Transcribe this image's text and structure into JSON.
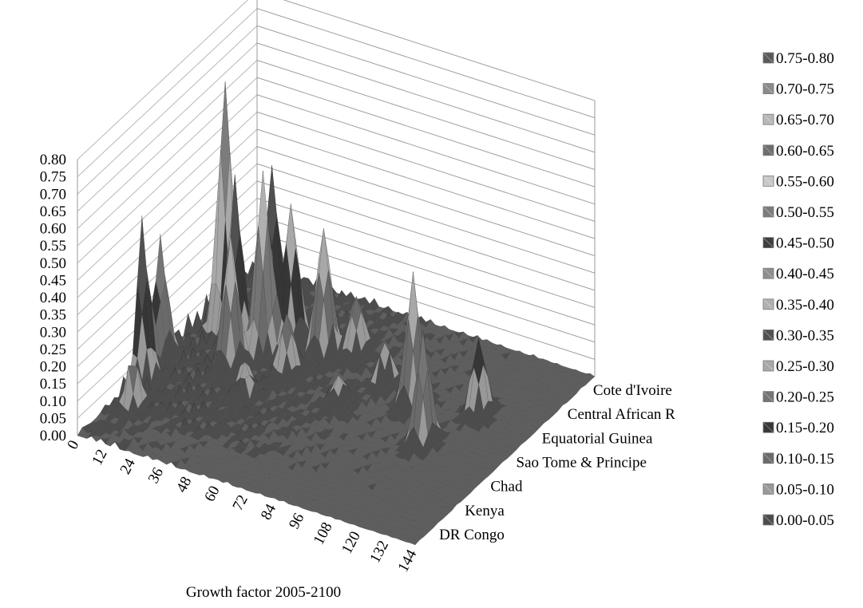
{
  "chart_data": {
    "type": "surface",
    "title": "",
    "xlabel": "Growth factor 2005-2100",
    "ylabel": "",
    "zlim": [
      0,
      0.8
    ],
    "z_ticks": [
      "0.80",
      "0.75",
      "0.70",
      "0.65",
      "0.60",
      "0.55",
      "0.50",
      "0.45",
      "0.40",
      "0.35",
      "0.30",
      "0.25",
      "0.20",
      "0.15",
      "0.10",
      "0.05",
      "0.00"
    ],
    "x_ticks": [
      "0",
      "12",
      "24",
      "36",
      "48",
      "60",
      "72",
      "84",
      "96",
      "108",
      "120",
      "132",
      "144"
    ],
    "y_categories": [
      "DR Congo",
      "Kenya",
      "Chad",
      "Sao Tome & Principe",
      "Equatorial Guinea",
      "Central African R",
      "Cote d'Ivoire"
    ],
    "legend": {
      "placement": "right",
      "entries": [
        "0.75-0.80",
        "0.70-0.75",
        "0.65-0.70",
        "0.60-0.65",
        "0.55-0.60",
        "0.50-0.55",
        "0.45-0.50",
        "0.40-0.45",
        "0.35-0.40",
        "0.30-0.35",
        "0.25-0.30",
        "0.20-0.25",
        "0.15-0.20",
        "0.10-0.15",
        "0.05-0.10",
        "0.00-0.05"
      ]
    },
    "band_colors": [
      "#5a5a5a",
      "#8a8a8a",
      "#b8b8b8",
      "#6e6e6e",
      "#c8c8c8",
      "#7c7c7c",
      "#3e3e3e",
      "#8e8e8e",
      "#b0b0b0",
      "#505050",
      "#a8a8a8",
      "#747474",
      "#363636",
      "#6a6a6a",
      "#999999",
      "#4c4c4c"
    ],
    "peaks": [
      {
        "x": 0,
        "row": 14,
        "z": 0.42
      },
      {
        "x": 0,
        "row": 18,
        "z": 0.33
      },
      {
        "x": 10,
        "row": 27,
        "z": 0.71
      },
      {
        "x": 20,
        "row": 24,
        "z": 0.48
      },
      {
        "x": 26,
        "row": 20,
        "z": 0.38
      },
      {
        "x": 24,
        "row": 30,
        "z": 0.46
      },
      {
        "x": 30,
        "row": 25,
        "z": 0.52
      },
      {
        "x": 18,
        "row": 34,
        "z": 0.2
      },
      {
        "x": 36,
        "row": 28,
        "z": 0.4
      },
      {
        "x": 46,
        "row": 22,
        "z": 0.18
      },
      {
        "x": 50,
        "row": 28,
        "z": 0.36
      },
      {
        "x": 60,
        "row": 30,
        "z": 0.16
      },
      {
        "x": 80,
        "row": 26,
        "z": 0.12
      },
      {
        "x": 96,
        "row": 24,
        "z": 0.38
      },
      {
        "x": 112,
        "row": 18,
        "z": 0.32
      },
      {
        "x": 120,
        "row": 26,
        "z": 0.22
      },
      {
        "x": 72,
        "row": 20,
        "z": 0.08
      },
      {
        "x": 40,
        "row": 16,
        "z": 0.1
      },
      {
        "x": 8,
        "row": 8,
        "z": 0.12
      }
    ]
  }
}
